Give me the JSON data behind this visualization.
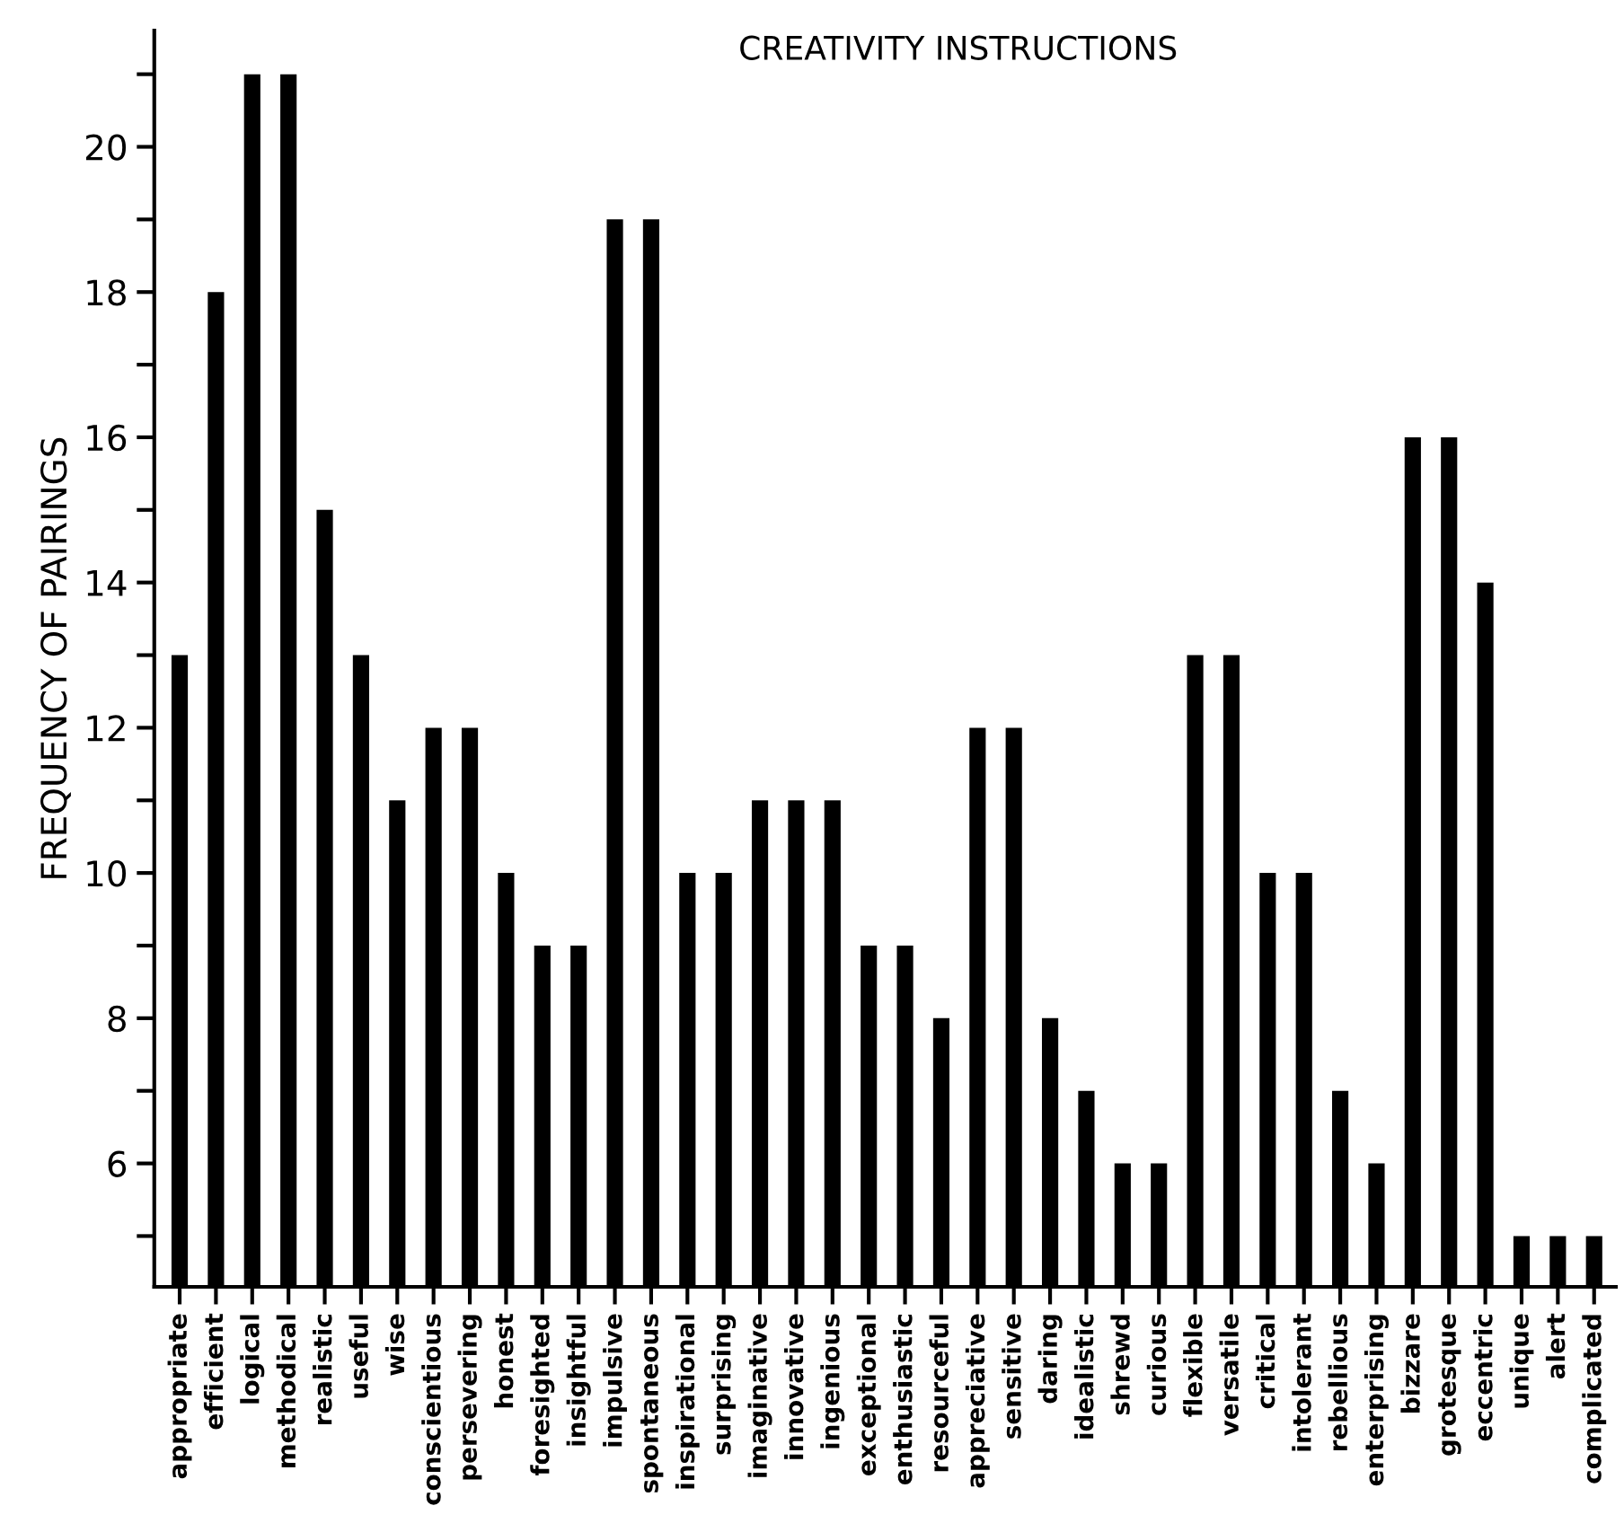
{
  "chart_data": {
    "type": "bar",
    "title": "CREATIVITY INSTRUCTIONS",
    "ylabel": "FREQUENCY OF PAIRINGS",
    "categories": [
      "appropriate",
      "efficient",
      "logical",
      "methodical",
      "realistic",
      "useful",
      "wise",
      "conscientious",
      "persevering",
      "honest",
      "foresighted",
      "insightful",
      "impulsive",
      "spontaneous",
      "inspirational",
      "surprising",
      "imaginative",
      "innovative",
      "ingenious",
      "exceptional",
      "enthusiastic",
      "resourceful",
      "appreciative",
      "sensitive",
      "daring",
      "idealistic",
      "shrewd",
      "curious",
      "flexible",
      "versatile",
      "critical",
      "intolerant",
      "rebellious",
      "enterprising",
      "bizzare",
      "grotesque",
      "eccentric",
      "unique",
      "alert",
      "complicated"
    ],
    "values": [
      13,
      18,
      21,
      21,
      15,
      13,
      11,
      12,
      12,
      10,
      9,
      9,
      19,
      19,
      10,
      10,
      11,
      11,
      11,
      9,
      9,
      8,
      12,
      12,
      8,
      7,
      6,
      6,
      13,
      13,
      10,
      10,
      7,
      6,
      16,
      16,
      14,
      5,
      5,
      5
    ],
    "color": "#000000",
    "ylim": [
      4.3,
      21.6
    ],
    "yticks": [
      {
        "value": 5,
        "label": null
      },
      6,
      {
        "value": 7,
        "label": null
      },
      8,
      {
        "value": 9,
        "label": null
      },
      10,
      {
        "value": 11,
        "label": null
      },
      12,
      {
        "value": 13,
        "label": null
      },
      14,
      {
        "value": 15,
        "label": null
      },
      16,
      {
        "value": 17,
        "label": null
      },
      18,
      {
        "value": 19,
        "label": null
      },
      20,
      {
        "value": 21,
        "label": null
      }
    ],
    "grid": false
  }
}
